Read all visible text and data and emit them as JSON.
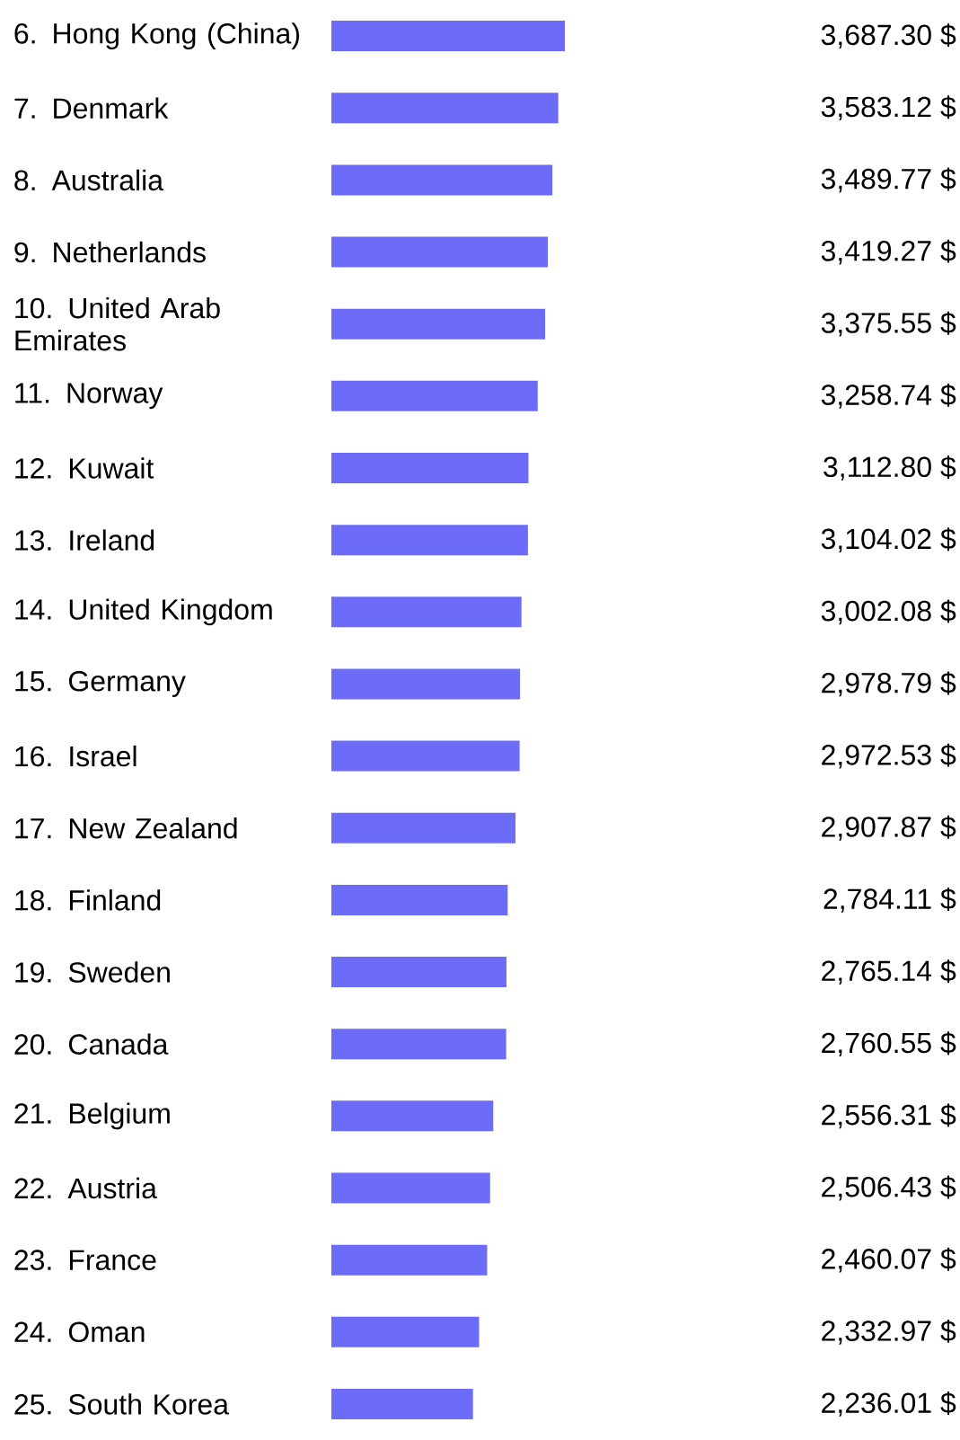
{
  "chart_data": {
    "type": "bar",
    "orientation": "horizontal",
    "color": "#6c6cf9",
    "categories": [
      "6. Hong Kong (China)",
      "7. Denmark",
      "8. Australia",
      "9. Netherlands",
      "10. United Arab Emirates",
      "11. Norway",
      "12. Kuwait",
      "13. Ireland",
      "14. United Kingdom",
      "15. Germany",
      "16. Israel",
      "17. New Zealand",
      "18. Finland",
      "19. Sweden",
      "20. Canada",
      "21. Belgium",
      "22. Austria",
      "23. France",
      "24. Oman",
      "25. South Korea"
    ],
    "values": [
      3687.3,
      3583.12,
      3489.77,
      3419.27,
      3375.55,
      3258.74,
      3112.8,
      3104.02,
      3002.08,
      2978.79,
      2972.53,
      2907.87,
      2784.11,
      2765.14,
      2760.55,
      2556.31,
      2506.43,
      2460.07,
      2332.97,
      2236.01
    ],
    "value_labels": [
      "3,687.30 $",
      "3,583.12 $",
      "3,489.77 $",
      "3,419.27 $",
      "3,375.55 $",
      "3,258.74 $",
      "3,112.80 $",
      "3,104.02 $",
      "3,002.08 $",
      "2,978.79 $",
      "2,972.53 $",
      "2,907.87 $",
      "2,784.11 $",
      "2,765.14 $",
      "2,760.55 $",
      "2,556.31 $",
      "2,506.43 $",
      "2,460.07 $",
      "2,332.97 $",
      "2,236.01 $"
    ]
  }
}
